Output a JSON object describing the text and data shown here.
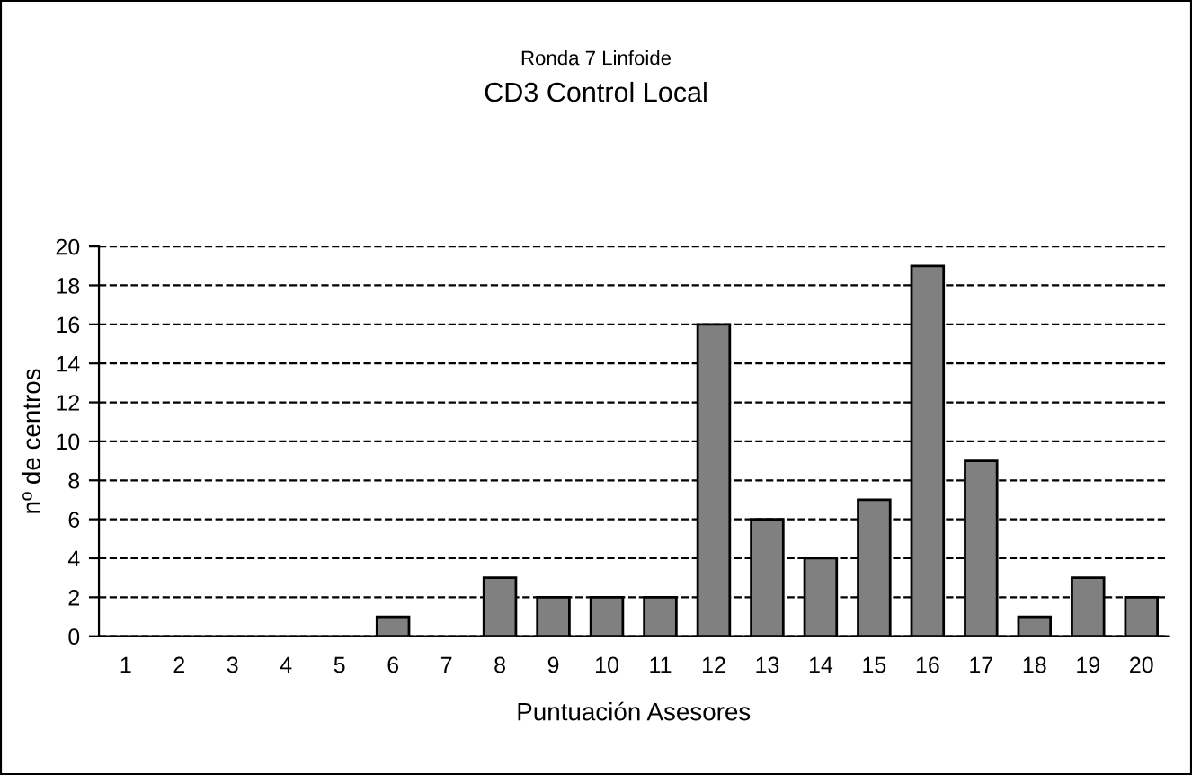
{
  "chart_data": {
    "type": "bar",
    "title": "CD3 Control Local",
    "subtitle": "Ronda 7 Linfoide",
    "xlabel": "Puntuación Asesores",
    "ylabel": "nº de centros",
    "categories": [
      "1",
      "2",
      "3",
      "4",
      "5",
      "6",
      "7",
      "8",
      "9",
      "10",
      "11",
      "12",
      "13",
      "14",
      "15",
      "16",
      "17",
      "18",
      "19",
      "20"
    ],
    "values": [
      0,
      0,
      0,
      0,
      0,
      1,
      0,
      3,
      2,
      2,
      2,
      16,
      6,
      4,
      7,
      19,
      9,
      1,
      3,
      2
    ],
    "color": "#808080",
    "ylim": [
      0,
      20
    ],
    "yticks": [
      0,
      2,
      4,
      6,
      8,
      10,
      12,
      14,
      16,
      18,
      20
    ],
    "grid": "y",
    "line_style": "dashed",
    "legend": false
  }
}
